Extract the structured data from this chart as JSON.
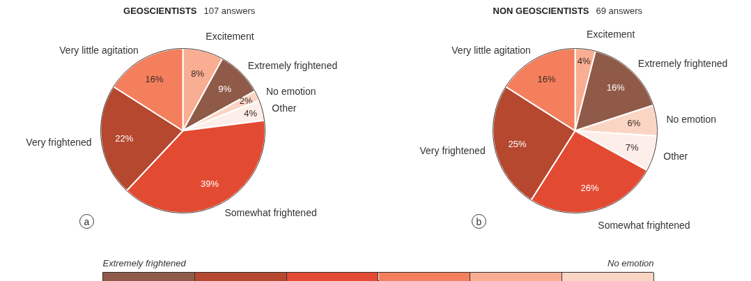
{
  "chart_data": [
    {
      "type": "pie",
      "title": "GEOSCIENTISTS",
      "subtitle": "107 answers",
      "categories": [
        "Excitement",
        "Extremely frightened",
        "No emotion",
        "Other",
        "Somewhat frightened",
        "Very frightened",
        "Very little agitation"
      ],
      "values": [
        8,
        9,
        2,
        4,
        39,
        22,
        16
      ],
      "value_labels": [
        "8%",
        "9%",
        "2%",
        "4%",
        "39%",
        "22%",
        "16%"
      ],
      "colors": [
        "#f9ad92",
        "#8f5a48",
        "#fbd5c4",
        "#fdeee9",
        "#e34a32",
        "#b5482f",
        "#f47f5c"
      ],
      "annotations": [
        "a"
      ]
    },
    {
      "type": "pie",
      "title": "NON GEOSCIENTISTS",
      "subtitle": "69 answers",
      "categories": [
        "Excitement",
        "Extremely frightened",
        "No emotion",
        "Other",
        "Somewhat frightened",
        "Very frightened",
        "Very little agitation"
      ],
      "values": [
        4,
        16,
        6,
        7,
        26,
        25,
        16
      ],
      "value_labels": [
        "4%",
        "16%",
        "6%",
        "7%",
        "26%",
        "25%",
        "16%"
      ],
      "colors": [
        "#f9ad92",
        "#8f5a48",
        "#fbd5c4",
        "#fdeee9",
        "#e34a32",
        "#b5482f",
        "#f47f5c"
      ],
      "annotations": [
        "b"
      ]
    },
    {
      "type": "other",
      "colors": [
        "#8f5a48",
        "#b5482f",
        "#e34a32",
        "#f47f5c",
        "#f9ad92",
        "#fbd5c4"
      ],
      "annotations": [
        "Extremely frightened",
        "No emotion"
      ]
    }
  ]
}
